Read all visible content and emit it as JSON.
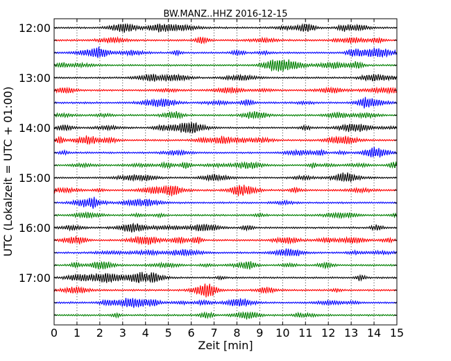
{
  "chart_data": {
    "type": "line",
    "title": "BW.MANZ..HHZ 2016-12-15",
    "xlabel": "Zeit  [min]",
    "ylabel": "UTC (Lokalzeit = UTC + 01:00)",
    "xlim": [
      0,
      15
    ],
    "x_ticks": [
      "0",
      "1",
      "2",
      "3",
      "4",
      "5",
      "6",
      "7",
      "8",
      "9",
      "10",
      "11",
      "12",
      "13",
      "14",
      "15"
    ],
    "y_tick_labels": [
      "12:00",
      "13:00",
      "14:00",
      "15:00",
      "16:00",
      "17:00"
    ],
    "grid": "vertical dotted",
    "trace_colors": [
      "#000000",
      "#ff0000",
      "#0000ff",
      "#008000"
    ],
    "traces": [
      {
        "start": "12:00",
        "color": "#000000"
      },
      {
        "start": "12:15",
        "color": "#ff0000"
      },
      {
        "start": "12:30",
        "color": "#0000ff"
      },
      {
        "start": "12:45",
        "color": "#008000"
      },
      {
        "start": "13:00",
        "color": "#000000"
      },
      {
        "start": "13:15",
        "color": "#ff0000"
      },
      {
        "start": "13:30",
        "color": "#0000ff"
      },
      {
        "start": "13:45",
        "color": "#008000"
      },
      {
        "start": "14:00",
        "color": "#000000"
      },
      {
        "start": "14:15",
        "color": "#ff0000"
      },
      {
        "start": "14:30",
        "color": "#0000ff"
      },
      {
        "start": "14:45",
        "color": "#008000"
      },
      {
        "start": "15:00",
        "color": "#000000"
      },
      {
        "start": "15:15",
        "color": "#ff0000"
      },
      {
        "start": "15:30",
        "color": "#0000ff"
      },
      {
        "start": "15:45",
        "color": "#008000"
      },
      {
        "start": "16:00",
        "color": "#000000"
      },
      {
        "start": "16:15",
        "color": "#ff0000"
      },
      {
        "start": "16:30",
        "color": "#0000ff"
      },
      {
        "start": "16:45",
        "color": "#008000"
      },
      {
        "start": "17:00",
        "color": "#000000"
      },
      {
        "start": "17:15",
        "color": "#ff0000"
      },
      {
        "start": "17:30",
        "color": "#0000ff"
      },
      {
        "start": "17:45",
        "color": "#008000"
      }
    ]
  }
}
